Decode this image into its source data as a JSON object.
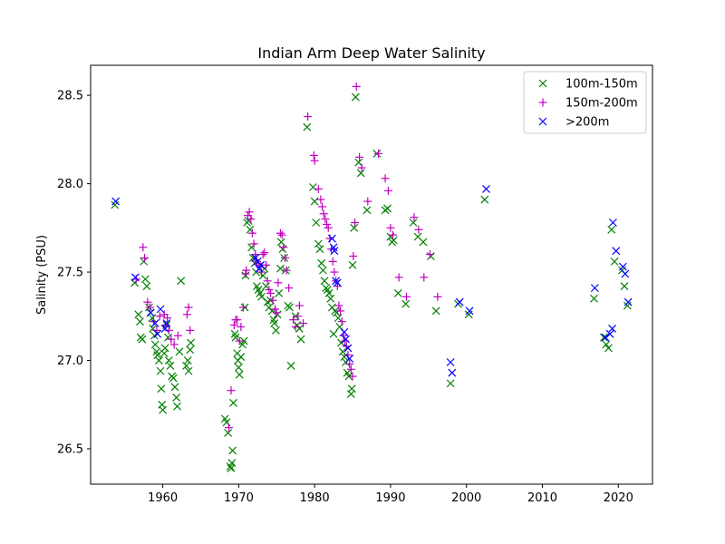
{
  "chart_data": {
    "type": "scatter",
    "title": "Indian Arm Deep Water Salinity",
    "xlabel": "",
    "ylabel": "Salinity (PSU)",
    "xlim": [
      1950.5,
      2024.5
    ],
    "ylim": [
      26.3,
      28.67
    ],
    "xticks": [
      1960,
      1970,
      1980,
      1990,
      2000,
      2010,
      2020
    ],
    "yticks": [
      26.5,
      27.0,
      27.5,
      28.0,
      28.5
    ],
    "xtick_labels": [
      "1960",
      "1970",
      "1980",
      "1990",
      "2000",
      "2010",
      "2020"
    ],
    "ytick_labels": [
      "26.5",
      "27.0",
      "27.5",
      "28.0",
      "28.5"
    ],
    "grid": false,
    "legend_position": "top-right",
    "series": [
      {
        "name": "100m-150m",
        "marker": "x",
        "color": "#008000",
        "points": [
          [
            1953.7,
            27.88
          ],
          [
            1956.3,
            27.44
          ],
          [
            1956.8,
            27.26
          ],
          [
            1957.0,
            27.22
          ],
          [
            1957.1,
            27.13
          ],
          [
            1957.3,
            27.12
          ],
          [
            1957.5,
            27.56
          ],
          [
            1957.7,
            27.46
          ],
          [
            1957.9,
            27.42
          ],
          [
            1958.2,
            27.3
          ],
          [
            1958.4,
            27.27
          ],
          [
            1958.6,
            27.24
          ],
          [
            1958.7,
            27.18
          ],
          [
            1958.9,
            27.14
          ],
          [
            1959.0,
            27.09
          ],
          [
            1959.2,
            27.05
          ],
          [
            1959.3,
            27.03
          ],
          [
            1959.5,
            27.0
          ],
          [
            1959.7,
            26.94
          ],
          [
            1959.8,
            26.84
          ],
          [
            1959.9,
            26.75
          ],
          [
            1960.0,
            26.72
          ],
          [
            1960.2,
            27.04
          ],
          [
            1960.3,
            27.07
          ],
          [
            1960.5,
            27.2
          ],
          [
            1960.7,
            27.13
          ],
          [
            1960.8,
            27.0
          ],
          [
            1961.0,
            26.97
          ],
          [
            1961.2,
            26.91
          ],
          [
            1961.4,
            26.9
          ],
          [
            1961.6,
            26.85
          ],
          [
            1961.8,
            26.79
          ],
          [
            1961.9,
            26.74
          ],
          [
            1962.2,
            27.05
          ],
          [
            1962.4,
            27.45
          ],
          [
            1963.1,
            26.97
          ],
          [
            1963.3,
            27.0
          ],
          [
            1963.4,
            26.94
          ],
          [
            1963.6,
            27.06
          ],
          [
            1963.7,
            27.1
          ],
          [
            1968.2,
            26.67
          ],
          [
            1968.4,
            26.65
          ],
          [
            1968.6,
            26.59
          ],
          [
            1968.9,
            26.4
          ],
          [
            1969.0,
            26.39
          ],
          [
            1969.1,
            26.42
          ],
          [
            1969.2,
            26.49
          ],
          [
            1969.3,
            26.76
          ],
          [
            1969.5,
            27.15
          ],
          [
            1969.6,
            27.13
          ],
          [
            1969.8,
            27.04
          ],
          [
            1969.9,
            27.0
          ],
          [
            1970.0,
            26.96
          ],
          [
            1970.1,
            26.92
          ],
          [
            1970.3,
            27.02
          ],
          [
            1970.5,
            27.09
          ],
          [
            1970.7,
            27.11
          ],
          [
            1970.8,
            27.3
          ],
          [
            1970.9,
            27.48
          ],
          [
            1971.1,
            27.78
          ],
          [
            1971.3,
            27.79
          ],
          [
            1971.5,
            27.74
          ],
          [
            1971.7,
            27.64
          ],
          [
            1971.9,
            27.58
          ],
          [
            1972.1,
            27.55
          ],
          [
            1972.3,
            27.5
          ],
          [
            1972.4,
            27.42
          ],
          [
            1972.6,
            27.4
          ],
          [
            1972.8,
            27.38
          ],
          [
            1973.0,
            27.36
          ],
          [
            1973.2,
            27.48
          ],
          [
            1973.4,
            27.52
          ],
          [
            1973.6,
            27.42
          ],
          [
            1973.8,
            27.33
          ],
          [
            1974.0,
            27.3
          ],
          [
            1974.2,
            27.34
          ],
          [
            1974.4,
            27.28
          ],
          [
            1974.6,
            27.23
          ],
          [
            1974.7,
            27.21
          ],
          [
            1974.9,
            27.17
          ],
          [
            1975.1,
            27.26
          ],
          [
            1975.3,
            27.38
          ],
          [
            1975.5,
            27.52
          ],
          [
            1975.6,
            27.67
          ],
          [
            1975.8,
            27.63
          ],
          [
            1976.0,
            27.58
          ],
          [
            1976.2,
            27.51
          ],
          [
            1976.5,
            27.31
          ],
          [
            1976.7,
            27.3
          ],
          [
            1976.9,
            26.97
          ],
          [
            1977.5,
            27.25
          ],
          [
            1977.7,
            27.2
          ],
          [
            1978.0,
            27.18
          ],
          [
            1978.2,
            27.12
          ],
          [
            1979.0,
            28.32
          ],
          [
            1979.8,
            27.98
          ],
          [
            1980.0,
            27.9
          ],
          [
            1980.2,
            27.78
          ],
          [
            1980.5,
            27.66
          ],
          [
            1980.7,
            27.63
          ],
          [
            1980.9,
            27.55
          ],
          [
            1981.1,
            27.51
          ],
          [
            1981.3,
            27.45
          ],
          [
            1981.5,
            27.41
          ],
          [
            1981.7,
            27.4
          ],
          [
            1981.9,
            27.38
          ],
          [
            1982.1,
            27.35
          ],
          [
            1982.3,
            27.3
          ],
          [
            1982.5,
            27.15
          ],
          [
            1982.7,
            27.28
          ],
          [
            1982.9,
            27.27
          ],
          [
            1983.1,
            27.24
          ],
          [
            1983.3,
            27.19
          ],
          [
            1983.5,
            27.1
          ],
          [
            1983.7,
            27.05
          ],
          [
            1983.9,
            27.02
          ],
          [
            1984.1,
            26.99
          ],
          [
            1984.3,
            26.93
          ],
          [
            1984.5,
            26.91
          ],
          [
            1984.8,
            26.81
          ],
          [
            1984.9,
            26.84
          ],
          [
            1985.0,
            27.54
          ],
          [
            1985.2,
            27.75
          ],
          [
            1985.4,
            28.49
          ],
          [
            1985.8,
            28.12
          ],
          [
            1986.1,
            28.06
          ],
          [
            1986.9,
            27.85
          ],
          [
            1988.2,
            28.17
          ],
          [
            1989.3,
            27.85
          ],
          [
            1989.6,
            27.86
          ],
          [
            1990.0,
            27.7
          ],
          [
            1990.2,
            27.67
          ],
          [
            1990.4,
            27.68
          ],
          [
            1991.0,
            27.38
          ],
          [
            1992.0,
            27.32
          ],
          [
            1993.0,
            27.78
          ],
          [
            1993.6,
            27.7
          ],
          [
            1994.3,
            27.67
          ],
          [
            1995.3,
            27.59
          ],
          [
            1996.0,
            27.28
          ],
          [
            1997.9,
            26.87
          ],
          [
            1998.9,
            27.32
          ],
          [
            2000.3,
            27.26
          ],
          [
            2002.4,
            27.91
          ],
          [
            2016.8,
            27.35
          ],
          [
            2018.1,
            27.13
          ],
          [
            2018.4,
            27.09
          ],
          [
            2018.7,
            27.07
          ],
          [
            2019.1,
            27.74
          ],
          [
            2019.5,
            27.56
          ],
          [
            2020.5,
            27.51
          ],
          [
            2020.8,
            27.42
          ],
          [
            2021.2,
            27.31
          ]
        ]
      },
      {
        "name": "150m-200m",
        "marker": "+",
        "color": "#bf00bf",
        "points": [
          [
            1956.5,
            27.46
          ],
          [
            1957.4,
            27.64
          ],
          [
            1957.6,
            27.58
          ],
          [
            1958.0,
            27.33
          ],
          [
            1958.3,
            27.3
          ],
          [
            1958.8,
            27.22
          ],
          [
            1959.2,
            27.17
          ],
          [
            1959.6,
            27.25
          ],
          [
            1960.2,
            27.26
          ],
          [
            1960.4,
            27.2
          ],
          [
            1960.6,
            27.24
          ],
          [
            1960.8,
            27.17
          ],
          [
            1961.1,
            27.12
          ],
          [
            1961.5,
            27.09
          ],
          [
            1962.0,
            27.14
          ],
          [
            1963.2,
            27.26
          ],
          [
            1963.4,
            27.3
          ],
          [
            1963.6,
            27.17
          ],
          [
            1968.7,
            26.62
          ],
          [
            1969.0,
            26.83
          ],
          [
            1969.4,
            27.2
          ],
          [
            1969.6,
            27.23
          ],
          [
            1969.8,
            27.23
          ],
          [
            1970.1,
            27.11
          ],
          [
            1970.3,
            27.19
          ],
          [
            1970.6,
            27.3
          ],
          [
            1970.9,
            27.49
          ],
          [
            1971.0,
            27.51
          ],
          [
            1971.2,
            27.82
          ],
          [
            1971.4,
            27.84
          ],
          [
            1971.6,
            27.8
          ],
          [
            1971.8,
            27.72
          ],
          [
            1972.0,
            27.66
          ],
          [
            1972.2,
            27.6
          ],
          [
            1972.4,
            27.56
          ],
          [
            1972.6,
            27.55
          ],
          [
            1972.8,
            27.53
          ],
          [
            1973.0,
            27.5
          ],
          [
            1973.2,
            27.6
          ],
          [
            1973.4,
            27.61
          ],
          [
            1973.6,
            27.54
          ],
          [
            1973.8,
            27.45
          ],
          [
            1974.0,
            27.4
          ],
          [
            1974.2,
            27.38
          ],
          [
            1974.5,
            27.34
          ],
          [
            1974.8,
            27.29
          ],
          [
            1975.0,
            27.27
          ],
          [
            1975.2,
            27.44
          ],
          [
            1975.5,
            27.72
          ],
          [
            1975.7,
            27.71
          ],
          [
            1975.9,
            27.64
          ],
          [
            1976.1,
            27.58
          ],
          [
            1976.3,
            27.51
          ],
          [
            1976.6,
            27.41
          ],
          [
            1977.2,
            27.23
          ],
          [
            1977.5,
            27.19
          ],
          [
            1977.8,
            27.25
          ],
          [
            1978.0,
            27.31
          ],
          [
            1978.5,
            27.21
          ],
          [
            1979.1,
            28.38
          ],
          [
            1979.9,
            28.16
          ],
          [
            1980.0,
            28.13
          ],
          [
            1980.5,
            27.97
          ],
          [
            1980.8,
            27.91
          ],
          [
            1981.0,
            27.87
          ],
          [
            1981.2,
            27.83
          ],
          [
            1981.4,
            27.8
          ],
          [
            1981.6,
            27.77
          ],
          [
            1981.8,
            27.75
          ],
          [
            1982.0,
            27.69
          ],
          [
            1982.2,
            27.63
          ],
          [
            1982.4,
            27.56
          ],
          [
            1982.6,
            27.5
          ],
          [
            1982.8,
            27.45
          ],
          [
            1983.0,
            27.42
          ],
          [
            1983.2,
            27.31
          ],
          [
            1983.4,
            27.28
          ],
          [
            1983.6,
            27.22
          ],
          [
            1983.8,
            27.14
          ],
          [
            1984.0,
            27.11
          ],
          [
            1984.2,
            27.08
          ],
          [
            1984.4,
            27.03
          ],
          [
            1984.6,
            26.98
          ],
          [
            1984.8,
            26.95
          ],
          [
            1985.0,
            26.91
          ],
          [
            1985.1,
            27.59
          ],
          [
            1985.3,
            27.78
          ],
          [
            1985.5,
            28.55
          ],
          [
            1985.9,
            28.15
          ],
          [
            1986.2,
            28.09
          ],
          [
            1987.0,
            27.9
          ],
          [
            1988.4,
            28.17
          ],
          [
            1989.3,
            28.03
          ],
          [
            1989.7,
            27.96
          ],
          [
            1990.0,
            27.75
          ],
          [
            1990.3,
            27.71
          ],
          [
            1991.1,
            27.47
          ],
          [
            1992.1,
            27.36
          ],
          [
            1993.1,
            27.81
          ],
          [
            1993.7,
            27.74
          ],
          [
            1994.4,
            27.47
          ],
          [
            1995.2,
            27.6
          ],
          [
            1996.2,
            27.36
          ]
        ]
      },
      {
        "name": ">200m",
        "marker": "x",
        "color": "#0000ff",
        "points": [
          [
            1953.8,
            27.9
          ],
          [
            1956.4,
            27.47
          ],
          [
            1958.4,
            27.27
          ],
          [
            1959.0,
            27.21
          ],
          [
            1959.3,
            27.15
          ],
          [
            1959.7,
            27.29
          ],
          [
            1960.3,
            27.18
          ],
          [
            1960.5,
            27.21
          ],
          [
            1972.2,
            27.58
          ],
          [
            1972.5,
            27.56
          ],
          [
            1972.7,
            27.52
          ],
          [
            1972.9,
            27.54
          ],
          [
            1982.3,
            27.69
          ],
          [
            1982.5,
            27.64
          ],
          [
            1982.6,
            27.62
          ],
          [
            1982.8,
            27.45
          ],
          [
            1983.0,
            27.44
          ],
          [
            1983.9,
            27.16
          ],
          [
            1984.1,
            27.12
          ],
          [
            1984.4,
            27.07
          ],
          [
            1984.6,
            27.01
          ],
          [
            1997.9,
            26.99
          ],
          [
            1998.1,
            26.93
          ],
          [
            1999.1,
            27.33
          ],
          [
            2000.4,
            27.28
          ],
          [
            2002.6,
            27.97
          ],
          [
            2016.9,
            27.41
          ],
          [
            2018.3,
            27.13
          ],
          [
            2018.9,
            27.15
          ],
          [
            2019.2,
            27.18
          ],
          [
            2019.3,
            27.78
          ],
          [
            2019.7,
            27.62
          ],
          [
            2020.6,
            27.53
          ],
          [
            2020.9,
            27.49
          ],
          [
            2021.3,
            27.33
          ]
        ]
      }
    ]
  }
}
